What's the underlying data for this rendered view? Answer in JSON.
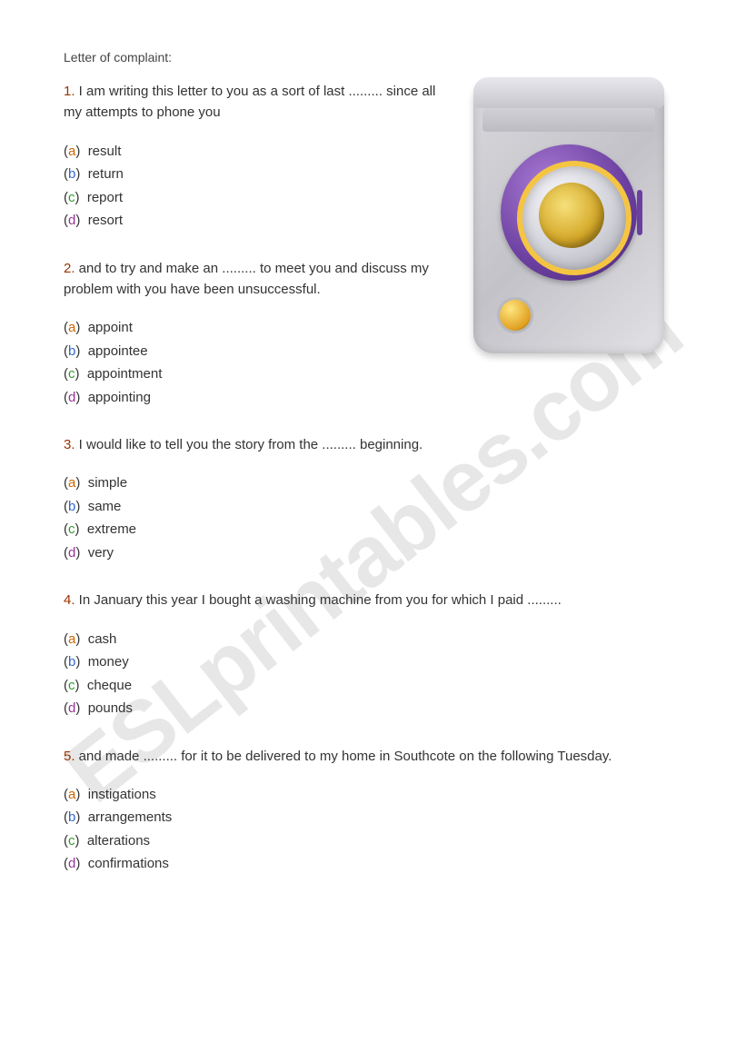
{
  "title": "Letter of complaint:",
  "watermark": "ESLprintables.com",
  "letterColors": {
    "a": "#cc6600",
    "b": "#3366cc",
    "c": "#339933",
    "d": "#993399",
    "num": "#993300"
  },
  "questions": [
    {
      "num": "1.",
      "text": " I am writing this letter to you as a sort of last ......... since all my attempts to phone you",
      "options": {
        "a": "result",
        "b": "return",
        "c": "report",
        "d": "resort"
      }
    },
    {
      "num": "2.",
      "text": " and to try and make an ......... to meet you and discuss my problem with you have been unsuccessful.",
      "options": {
        "a": "appoint",
        "b": "appointee",
        "c": "appointment",
        "d": "appointing"
      }
    },
    {
      "num": "3.",
      "text": " I would like to tell you the story from the ......... beginning.",
      "options": {
        "a": "simple",
        "b": "same",
        "c": "extreme",
        "d": "very"
      }
    },
    {
      "num": "4.",
      "text": " In January this year I bought a washing machine from you for which I paid .........",
      "options": {
        "a": "cash",
        "b": "money",
        "c": "cheque",
        "d": "pounds"
      }
    },
    {
      "num": "5.",
      "text": " and made ......... for it to be delivered to my home in Southcote on the following Tuesday.",
      "options": {
        "a": "instigations",
        "b": "arrangements",
        "c": "alterations",
        "d": "confirmations"
      }
    }
  ]
}
